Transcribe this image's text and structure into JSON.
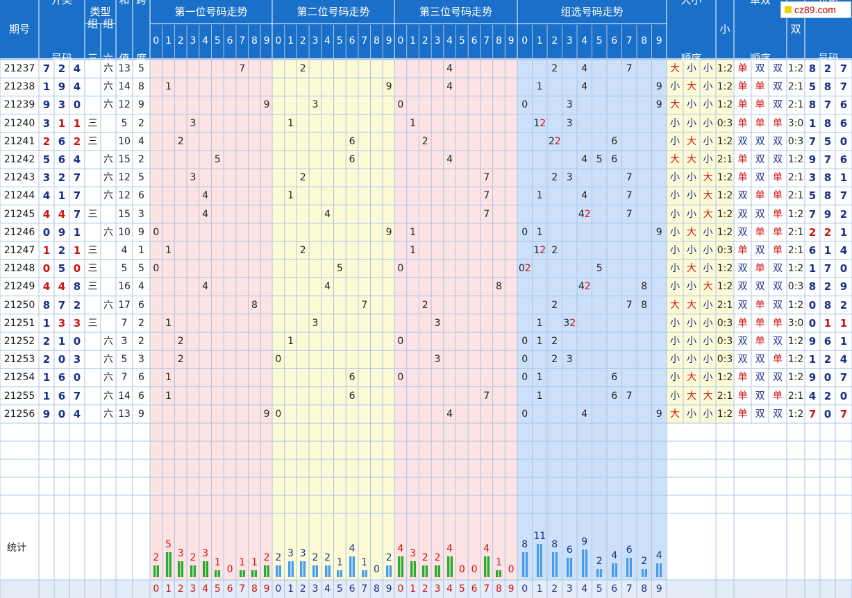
{
  "logo_text": "cz89.com",
  "headers": {
    "issue": "期号",
    "draw": "开奖\n号码",
    "type": "类型",
    "type_z3": "组\n三",
    "type_z6": "组\n六",
    "sum": "和\n值",
    "span": "跨\n度",
    "pos1": "第一位号码走势",
    "pos2": "第二位号码走势",
    "pos3": "第三位号码走势",
    "group": "组选号码走势",
    "size_order": "大小\n顺序",
    "size_ratio": "大\n小\n比",
    "odd_order": "单双\n顺序",
    "odd_ratio": "单\n双\n比",
    "trial": "试机\n号码",
    "digits": [
      "0",
      "1",
      "2",
      "3",
      "4",
      "5",
      "6",
      "7",
      "8",
      "9"
    ]
  },
  "stats_label": "统计",
  "rows": [
    {
      "issue": "21237",
      "draw": [
        "7",
        "2",
        "4"
      ],
      "type": "六",
      "sum": "13",
      "span": "5",
      "size": [
        "大",
        "小",
        "小"
      ],
      "sratio": "1:2",
      "odd": [
        "单",
        "双",
        "双"
      ],
      "oratio": "1:2",
      "trial": [
        "8",
        "2",
        "7"
      ],
      "group": "2,4,7"
    },
    {
      "issue": "21238",
      "draw": [
        "1",
        "9",
        "4"
      ],
      "type": "六",
      "sum": "14",
      "span": "8",
      "size": [
        "小",
        "大",
        "小"
      ],
      "sratio": "1:2",
      "odd": [
        "单",
        "单",
        "双"
      ],
      "oratio": "2:1",
      "trial": [
        "5",
        "8",
        "7"
      ],
      "group": "1,4,9"
    },
    {
      "issue": "21239",
      "draw": [
        "9",
        "3",
        "0"
      ],
      "type": "六",
      "sum": "12",
      "span": "9",
      "size": [
        "大",
        "小",
        "小"
      ],
      "sratio": "1:2",
      "odd": [
        "单",
        "单",
        "双"
      ],
      "oratio": "2:1",
      "trial": [
        "8",
        "7",
        "6"
      ],
      "group": "0,3,9"
    },
    {
      "issue": "21240",
      "draw": [
        "3",
        "1",
        "1"
      ],
      "type": "三",
      "sum": "5",
      "span": "2",
      "size": [
        "小",
        "小",
        "小"
      ],
      "sratio": "0:3",
      "odd": [
        "单",
        "单",
        "单"
      ],
      "oratio": "3:0",
      "trial": [
        "1",
        "8",
        "6"
      ],
      "group": "1*,3"
    },
    {
      "issue": "21241",
      "draw": [
        "2",
        "6",
        "2"
      ],
      "type": "三",
      "sum": "10",
      "span": "4",
      "size": [
        "小",
        "大",
        "小"
      ],
      "sratio": "1:2",
      "odd": [
        "双",
        "双",
        "双"
      ],
      "oratio": "0:3",
      "trial": [
        "7",
        "5",
        "0"
      ],
      "group": "2*,6"
    },
    {
      "issue": "21242",
      "draw": [
        "5",
        "6",
        "4"
      ],
      "type": "六",
      "sum": "15",
      "span": "2",
      "size": [
        "大",
        "大",
        "小"
      ],
      "sratio": "2:1",
      "odd": [
        "单",
        "双",
        "双"
      ],
      "oratio": "1:2",
      "trial": [
        "9",
        "7",
        "6"
      ],
      "group": "4,5,6"
    },
    {
      "issue": "21243",
      "draw": [
        "3",
        "2",
        "7"
      ],
      "type": "六",
      "sum": "12",
      "span": "5",
      "size": [
        "小",
        "小",
        "大"
      ],
      "sratio": "1:2",
      "odd": [
        "单",
        "双",
        "单"
      ],
      "oratio": "2:1",
      "trial": [
        "3",
        "8",
        "1"
      ],
      "group": "2,3,7"
    },
    {
      "issue": "21244",
      "draw": [
        "4",
        "1",
        "7"
      ],
      "type": "六",
      "sum": "12",
      "span": "6",
      "size": [
        "小",
        "小",
        "大"
      ],
      "sratio": "1:2",
      "odd": [
        "双",
        "单",
        "单"
      ],
      "oratio": "2:1",
      "trial": [
        "5",
        "8",
        "7"
      ],
      "group": "1,4,7"
    },
    {
      "issue": "21245",
      "draw": [
        "4",
        "4",
        "7"
      ],
      "type": "三",
      "sum": "15",
      "span": "3",
      "size": [
        "小",
        "小",
        "大"
      ],
      "sratio": "1:2",
      "odd": [
        "双",
        "双",
        "单"
      ],
      "oratio": "1:2",
      "trial": [
        "7",
        "9",
        "2"
      ],
      "group": "4*,7"
    },
    {
      "issue": "21246",
      "draw": [
        "0",
        "9",
        "1"
      ],
      "type": "六",
      "sum": "10",
      "span": "9",
      "size": [
        "小",
        "大",
        "小"
      ],
      "sratio": "1:2",
      "odd": [
        "双",
        "单",
        "单"
      ],
      "oratio": "2:1",
      "trial": [
        "2",
        "2",
        "1"
      ],
      "group": "0,1,9"
    },
    {
      "issue": "21247",
      "draw": [
        "1",
        "2",
        "1"
      ],
      "type": "三",
      "sum": "4",
      "span": "1",
      "size": [
        "小",
        "小",
        "小"
      ],
      "sratio": "0:3",
      "odd": [
        "单",
        "双",
        "单"
      ],
      "oratio": "2:1",
      "trial": [
        "6",
        "1",
        "4"
      ],
      "group": "1*,2"
    },
    {
      "issue": "21248",
      "draw": [
        "0",
        "5",
        "0"
      ],
      "type": "三",
      "sum": "5",
      "span": "5",
      "size": [
        "小",
        "大",
        "小"
      ],
      "sratio": "1:2",
      "odd": [
        "双",
        "单",
        "双"
      ],
      "oratio": "1:2",
      "trial": [
        "1",
        "7",
        "0"
      ],
      "group": "0*,5"
    },
    {
      "issue": "21249",
      "draw": [
        "4",
        "4",
        "8"
      ],
      "type": "三",
      "sum": "16",
      "span": "4",
      "size": [
        "小",
        "小",
        "大"
      ],
      "sratio": "1:2",
      "odd": [
        "双",
        "双",
        "双"
      ],
      "oratio": "0:3",
      "trial": [
        "8",
        "2",
        "9"
      ],
      "group": "4*,8"
    },
    {
      "issue": "21250",
      "draw": [
        "8",
        "7",
        "2"
      ],
      "type": "六",
      "sum": "17",
      "span": "6",
      "size": [
        "大",
        "大",
        "小"
      ],
      "sratio": "2:1",
      "odd": [
        "双",
        "单",
        "双"
      ],
      "oratio": "1:2",
      "trial": [
        "0",
        "8",
        "2"
      ],
      "group": "2,7,8"
    },
    {
      "issue": "21251",
      "draw": [
        "1",
        "3",
        "3"
      ],
      "type": "三",
      "sum": "7",
      "span": "2",
      "size": [
        "小",
        "小",
        "小"
      ],
      "sratio": "0:3",
      "odd": [
        "单",
        "单",
        "单"
      ],
      "oratio": "3:0",
      "trial": [
        "0",
        "1",
        "1"
      ],
      "group": "1,3*"
    },
    {
      "issue": "21252",
      "draw": [
        "2",
        "1",
        "0"
      ],
      "type": "六",
      "sum": "3",
      "span": "2",
      "size": [
        "小",
        "小",
        "小"
      ],
      "sratio": "0:3",
      "odd": [
        "双",
        "单",
        "双"
      ],
      "oratio": "1:2",
      "trial": [
        "9",
        "6",
        "1"
      ],
      "group": "0,1,2"
    },
    {
      "issue": "21253",
      "draw": [
        "2",
        "0",
        "3"
      ],
      "type": "六",
      "sum": "5",
      "span": "3",
      "size": [
        "小",
        "小",
        "小"
      ],
      "sratio": "0:3",
      "odd": [
        "双",
        "双",
        "单"
      ],
      "oratio": "1:2",
      "trial": [
        "1",
        "2",
        "4"
      ],
      "group": "0,2,3"
    },
    {
      "issue": "21254",
      "draw": [
        "1",
        "6",
        "0"
      ],
      "type": "六",
      "sum": "7",
      "span": "6",
      "size": [
        "小",
        "大",
        "小"
      ],
      "sratio": "1:2",
      "odd": [
        "单",
        "双",
        "双"
      ],
      "oratio": "1:2",
      "trial": [
        "9",
        "0",
        "7"
      ],
      "group": "0,1,6"
    },
    {
      "issue": "21255",
      "draw": [
        "1",
        "6",
        "7"
      ],
      "type": "六",
      "sum": "14",
      "span": "6",
      "size": [
        "小",
        "大",
        "大"
      ],
      "sratio": "2:1",
      "odd": [
        "单",
        "双",
        "单"
      ],
      "oratio": "2:1",
      "trial": [
        "4",
        "2",
        "0"
      ],
      "group": "1,6,7"
    },
    {
      "issue": "21256",
      "draw": [
        "9",
        "0",
        "4"
      ],
      "type": "六",
      "sum": "13",
      "span": "9",
      "size": [
        "大",
        "小",
        "小"
      ],
      "sratio": "1:2",
      "odd": [
        "单",
        "双",
        "双"
      ],
      "oratio": "1:2",
      "trial": [
        "7",
        "0",
        "7"
      ],
      "group": "0,4,9"
    }
  ],
  "stats": {
    "pos1": [
      2,
      5,
      3,
      2,
      3,
      1,
      0,
      1,
      1,
      2
    ],
    "pos2": [
      2,
      3,
      3,
      2,
      2,
      1,
      4,
      1,
      0,
      2
    ],
    "pos3": [
      4,
      3,
      2,
      2,
      4,
      0,
      0,
      4,
      1,
      0
    ],
    "group": [
      8,
      11,
      8,
      6,
      9,
      2,
      4,
      6,
      2,
      4
    ]
  },
  "colors": {
    "header_bg": "#1a6fc9",
    "pos1_bg": "#fde3e3",
    "pos2_bg": "#fdfbd6",
    "group_bg": "#cce0fa",
    "grid": "#a9c4e8",
    "red": "#d01010",
    "blue": "#1a2f8a",
    "bar_green": "#2ea82e",
    "bar_blue": "#4a9be8"
  }
}
